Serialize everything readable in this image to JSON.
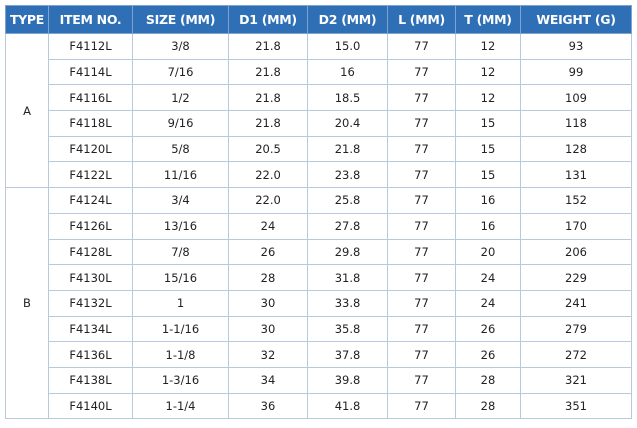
{
  "table": {
    "header": [
      "TYPE",
      "ITEM NO.",
      "SIZE (MM)",
      "D1 (MM)",
      "D2 (MM)",
      "L (MM)",
      "T (MM)",
      "WEIGHT (G)"
    ],
    "groups": [
      {
        "type": "A",
        "rows": [
          [
            "F4112L",
            "3/8",
            "21.8",
            "15.0",
            "77",
            "12",
            "93"
          ],
          [
            "F4114L",
            "7/16",
            "21.8",
            "16",
            "77",
            "12",
            "99"
          ],
          [
            "F4116L",
            "1/2",
            "21.8",
            "18.5",
            "77",
            "12",
            "109"
          ],
          [
            "F4118L",
            "9/16",
            "21.8",
            "20.4",
            "77",
            "15",
            "118"
          ],
          [
            "F4120L",
            "5/8",
            "20.5",
            "21.8",
            "77",
            "15",
            "128"
          ],
          [
            "F4122L",
            "11/16",
            "22.0",
            "23.8",
            "77",
            "15",
            "131"
          ]
        ]
      },
      {
        "type": "B",
        "rows": [
          [
            "F4124L",
            "3/4",
            "22.0",
            "25.8",
            "77",
            "16",
            "152"
          ],
          [
            "F4126L",
            "13/16",
            "24",
            "27.8",
            "77",
            "16",
            "170"
          ],
          [
            "F4128L",
            "7/8",
            "26",
            "29.8",
            "77",
            "20",
            "206"
          ],
          [
            "F4130L",
            "15/16",
            "28",
            "31.8",
            "77",
            "24",
            "229"
          ],
          [
            "F4132L",
            "1",
            "30",
            "33.8",
            "77",
            "24",
            "241"
          ],
          [
            "F4134L",
            "1-1/16",
            "30",
            "35.8",
            "77",
            "26",
            "279"
          ],
          [
            "F4136L",
            "1-1/8",
            "32",
            "37.8",
            "77",
            "26",
            "272"
          ],
          [
            "F4138L",
            "1-3/16",
            "34",
            "39.8",
            "77",
            "28",
            "321"
          ],
          [
            "F4140L",
            "1-1/4",
            "36",
            "41.8",
            "77",
            "28",
            "351"
          ]
        ]
      }
    ]
  }
}
